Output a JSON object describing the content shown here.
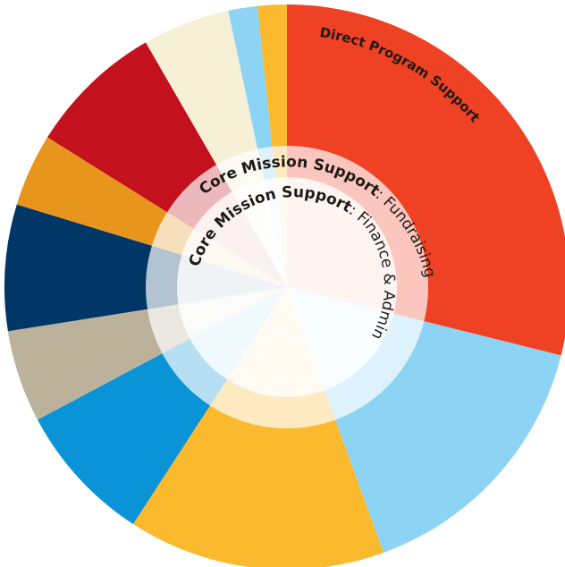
{
  "chart_data": {
    "type": "pie",
    "segments": [
      {
        "name": "Direct Program Support",
        "start_deg": 0,
        "end_deg": 104,
        "color": "#ef4123"
      },
      {
        "name": "",
        "start_deg": 104,
        "end_deg": 160,
        "color": "#8dd3f3"
      },
      {
        "name": "",
        "start_deg": 160,
        "end_deg": 213,
        "color": "#fbba2d"
      },
      {
        "name": "",
        "start_deg": 213,
        "end_deg": 242,
        "color": "#0a93d6"
      },
      {
        "name": "",
        "start_deg": 242,
        "end_deg": 261,
        "color": "#bcb29b"
      },
      {
        "name": "",
        "start_deg": 261,
        "end_deg": 287,
        "color": "#003767"
      },
      {
        "name": "",
        "start_deg": 287,
        "end_deg": 302,
        "color": "#e8951e"
      },
      {
        "name": "",
        "start_deg": 302,
        "end_deg": 330,
        "color": "#c3121d"
      },
      {
        "name": "",
        "start_deg": 330,
        "end_deg": 348,
        "color": "#f6f0d7"
      },
      {
        "name": "",
        "start_deg": 348,
        "end_deg": 354,
        "color": "#8dd3f3"
      },
      {
        "name": "",
        "start_deg": 354,
        "end_deg": 360,
        "color": "#fbba2d"
      }
    ],
    "inner_rings": [
      {
        "bold": "Core Mission Support",
        "light": ": Fundraising",
        "fill": "rgba(255,255,255,0.70)"
      },
      {
        "bold": "Core Mission Support",
        "light": ": Finance & Admin",
        "fill": "rgba(255,255,255,0.80)"
      }
    ]
  }
}
